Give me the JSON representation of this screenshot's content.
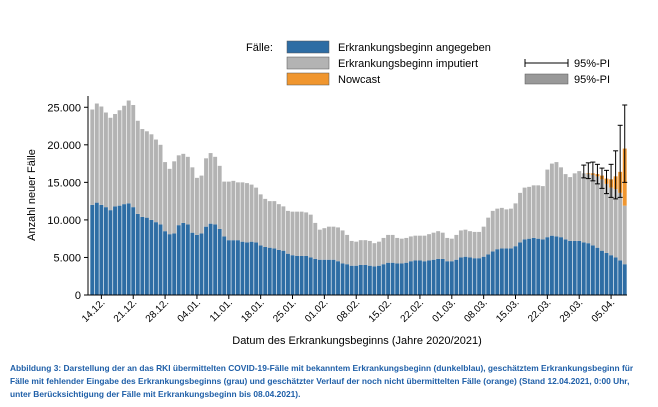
{
  "figure": {
    "caption": "Abbildung 3: Darstellung der an das RKI übermittelten COVID-19-Fälle mit bekanntem Erkrankungsbeginn (dunkelblau), geschätztem Erkrankungsbeginn für Fälle mit fehlender Eingabe des Erkrankungsbeginns (grau) und geschätzter Verlauf der noch nicht übermittelten Fälle (orange) (Stand 12.04.2021, 0:00 Uhr, unter Berücksichtigung der Fälle mit Erkrankungsbeginn bis 08.04.2021)."
  },
  "colors": {
    "known": "#2e6da4",
    "imputed": "#b3b3b3",
    "nowcast": "#f0962f",
    "pi_band": "#999999",
    "axis": "#000000"
  },
  "chart_data": {
    "type": "bar",
    "stacked": true,
    "xlabel": "Datum des Erkrankungsbeginns (Jahre 2020/2021)",
    "ylabel": "Anzahl neuer Fälle",
    "ylim": [
      0,
      26500
    ],
    "y_ticks": [
      0,
      5000,
      10000,
      15000,
      20000,
      25000
    ],
    "y_tick_labels": [
      "0",
      "5.000",
      "10.000",
      "15.000",
      "20.000",
      "25.000"
    ],
    "grid": false,
    "legend": {
      "title": "Fälle:",
      "placement": "top",
      "entries": [
        "Erkrankungsbeginn angegeben",
        "Erkrankungsbeginn imputiert",
        "Nowcast"
      ],
      "interval_entries": [
        "95%-PI",
        "95%-PI"
      ]
    },
    "categories": [
      "12.12.",
      "13.12.",
      "14.12.",
      "15.12.",
      "16.12.",
      "17.12.",
      "18.12.",
      "19.12.",
      "20.12.",
      "21.12.",
      "22.12.",
      "23.12.",
      "24.12.",
      "25.12.",
      "26.12.",
      "27.12.",
      "28.12.",
      "29.12.",
      "30.12.",
      "31.12.",
      "01.01.",
      "02.01.",
      "03.01.",
      "04.01.",
      "05.01.",
      "06.01.",
      "07.01.",
      "08.01.",
      "09.01.",
      "10.01.",
      "11.01.",
      "12.01.",
      "13.01.",
      "14.01.",
      "15.01.",
      "16.01.",
      "17.01.",
      "18.01.",
      "19.01.",
      "20.01.",
      "21.01.",
      "22.01.",
      "23.01.",
      "24.01.",
      "25.01.",
      "26.01.",
      "27.01.",
      "28.01.",
      "29.01.",
      "30.01.",
      "31.01.",
      "01.02.",
      "02.02.",
      "03.02.",
      "04.02.",
      "05.02.",
      "06.02.",
      "07.02.",
      "08.02.",
      "09.02.",
      "10.02.",
      "11.02.",
      "12.02.",
      "13.02.",
      "14.02.",
      "15.02.",
      "16.02.",
      "17.02.",
      "18.02.",
      "19.02.",
      "20.02.",
      "21.02.",
      "22.02.",
      "23.02.",
      "24.02.",
      "25.02.",
      "26.02.",
      "27.02.",
      "28.02.",
      "01.03.",
      "02.03.",
      "03.03.",
      "04.03.",
      "05.03.",
      "06.03.",
      "07.03.",
      "08.03.",
      "09.03.",
      "10.03.",
      "11.03.",
      "12.03.",
      "13.03.",
      "14.03.",
      "15.03.",
      "16.03.",
      "17.03.",
      "18.03.",
      "19.03.",
      "20.03.",
      "21.03.",
      "22.03.",
      "23.03.",
      "24.03.",
      "25.03.",
      "26.03.",
      "27.03.",
      "28.03.",
      "29.03.",
      "30.03.",
      "31.03.",
      "01.04.",
      "02.04.",
      "03.04.",
      "04.04.",
      "05.04.",
      "06.04.",
      "07.04.",
      "08.04."
    ],
    "x_tick_labels": [
      "14.12.",
      "21.12.",
      "28.12.",
      "04.01.",
      "11.01.",
      "18.01.",
      "25.01.",
      "01.02.",
      "08.02.",
      "15.02.",
      "22.02.",
      "01.03.",
      "08.03.",
      "15.03.",
      "22.03.",
      "29.03.",
      "05.04."
    ],
    "series": [
      {
        "name": "Erkrankungsbeginn angegeben",
        "values": [
          12000,
          12300,
          12000,
          11700,
          11300,
          11800,
          11900,
          12100,
          12200,
          11700,
          10800,
          10400,
          10300,
          10000,
          9700,
          9400,
          8500,
          8100,
          8200,
          9300,
          9600,
          9400,
          8300,
          8000,
          8200,
          9100,
          9500,
          9400,
          8800,
          7800,
          7300,
          7300,
          7300,
          7100,
          7000,
          7100,
          7000,
          6600,
          6400,
          6300,
          6200,
          6000,
          5900,
          5500,
          5300,
          5200,
          5200,
          5200,
          5000,
          4800,
          4700,
          4700,
          4700,
          4700,
          4500,
          4200,
          4100,
          3900,
          3900,
          4000,
          4000,
          3900,
          3800,
          3900,
          4100,
          4300,
          4300,
          4200,
          4200,
          4300,
          4500,
          4600,
          4600,
          4500,
          4600,
          4700,
          4800,
          4800,
          4500,
          4500,
          4700,
          5000,
          5100,
          5000,
          4900,
          4900,
          5100,
          5400,
          5800,
          6100,
          6200,
          6200,
          6200,
          6500,
          7000,
          7400,
          7500,
          7600,
          7500,
          7400,
          7700,
          7900,
          7800,
          7700,
          7400,
          7200,
          7200,
          7200,
          7000,
          6900,
          6600,
          6300,
          5900,
          5600,
          5300,
          5000,
          4600,
          4100
        ],
        "color": "#2e6da4"
      },
      {
        "name": "Erkrankungsbeginn imputiert",
        "values": [
          12700,
          13200,
          13100,
          12600,
          12300,
          12300,
          12700,
          13100,
          13700,
          13600,
          12400,
          11700,
          11500,
          11400,
          11000,
          10600,
          9200,
          8700,
          9600,
          9300,
          9200,
          9000,
          8700,
          7600,
          7700,
          9100,
          9400,
          9000,
          8400,
          7300,
          7800,
          7900,
          7700,
          7900,
          7900,
          7600,
          7300,
          6800,
          6400,
          6200,
          6300,
          6100,
          5900,
          5700,
          5800,
          5900,
          5900,
          5800,
          5700,
          4800,
          4000,
          4200,
          4400,
          4400,
          4500,
          4400,
          3900,
          3300,
          3200,
          3300,
          3300,
          3300,
          3100,
          3200,
          3500,
          3700,
          3700,
          3400,
          3300,
          3300,
          3300,
          3300,
          3300,
          3400,
          3500,
          3600,
          3700,
          3500,
          3100,
          3000,
          3300,
          3600,
          3600,
          3500,
          3500,
          3500,
          4000,
          4900,
          5400,
          5400,
          5400,
          5200,
          5300,
          5700,
          6600,
          6900,
          6900,
          7000,
          7100,
          7100,
          9000,
          9600,
          9900,
          9300,
          8700,
          8500,
          9000,
          9300,
          9200,
          9200,
          9400,
          9500,
          9500,
          9200,
          9000,
          9100,
          9000,
          7800
        ],
        "color": "#b3b3b3"
      },
      {
        "name": "Nowcast",
        "values": [
          0,
          0,
          0,
          0,
          0,
          0,
          0,
          0,
          0,
          0,
          0,
          0,
          0,
          0,
          0,
          0,
          0,
          0,
          0,
          0,
          0,
          0,
          0,
          0,
          0,
          0,
          0,
          0,
          0,
          0,
          0,
          0,
          0,
          0,
          0,
          0,
          0,
          0,
          0,
          0,
          0,
          0,
          0,
          0,
          0,
          0,
          0,
          0,
          0,
          0,
          0,
          0,
          0,
          0,
          0,
          0,
          0,
          0,
          0,
          0,
          0,
          0,
          0,
          0,
          0,
          0,
          0,
          0,
          0,
          0,
          0,
          0,
          0,
          0,
          0,
          0,
          0,
          0,
          0,
          0,
          0,
          0,
          0,
          0,
          0,
          0,
          0,
          0,
          0,
          0,
          0,
          0,
          0,
          0,
          0,
          0,
          0,
          0,
          0,
          0,
          0,
          0,
          0,
          0,
          0,
          0,
          0,
          0,
          0,
          100,
          200,
          300,
          500,
          700,
          1100,
          1700,
          2800,
          7600
        ],
        "color": "#f0962f"
      }
    ],
    "prediction_interval_95": [
      {
        "x": "30.03.",
        "low": 15600,
        "high": 17300
      },
      {
        "x": "31.03.",
        "low": 15500,
        "high": 17600
      },
      {
        "x": "01.04.",
        "low": 15200,
        "high": 17700
      },
      {
        "x": "02.04.",
        "low": 14800,
        "high": 17400
      },
      {
        "x": "03.04.",
        "low": 14200,
        "high": 16900
      },
      {
        "x": "04.04.",
        "low": 13500,
        "high": 16600
      },
      {
        "x": "05.04.",
        "low": 13000,
        "high": 17400
      },
      {
        "x": "06.04.",
        "low": 12800,
        "high": 19200
      },
      {
        "x": "07.04.",
        "low": 13000,
        "high": 22600
      },
      {
        "x": "08.04.",
        "low": 15000,
        "high": 25300
      }
    ]
  }
}
